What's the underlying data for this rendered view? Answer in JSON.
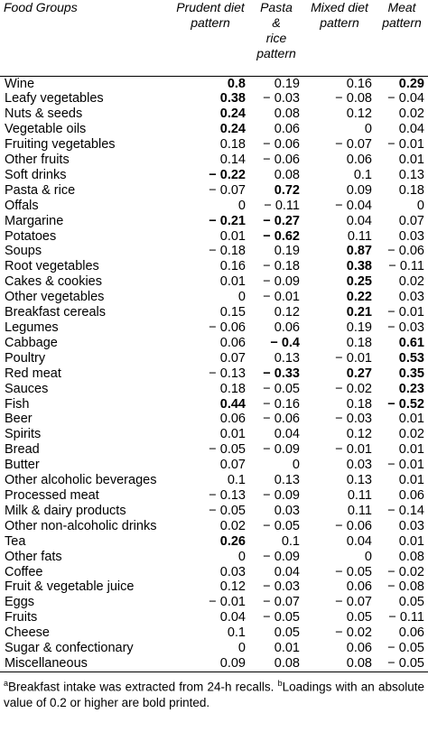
{
  "headers": [
    "Food Groups",
    "Prudent diet pattern",
    "Pasta & rice pattern",
    "Mixed diet pattern",
    "Meat pattern"
  ],
  "header_lines": [
    [
      "Food Groups"
    ],
    [
      "Prudent diet",
      "pattern"
    ],
    [
      "Pasta",
      "&",
      "rice",
      "pattern"
    ],
    [
      "Mixed diet",
      "pattern"
    ],
    [
      "Meat",
      "pattern"
    ]
  ],
  "rows": [
    {
      "name": "Wine",
      "v": [
        "0.8",
        "0.19",
        "0.16",
        "0.29"
      ],
      "b": [
        true,
        false,
        false,
        true
      ]
    },
    {
      "name": "Leafy vegetables",
      "v": [
        "0.38",
        "− 0.03",
        "− 0.08",
        "− 0.04"
      ],
      "b": [
        true,
        false,
        false,
        false
      ]
    },
    {
      "name": "Nuts & seeds",
      "v": [
        "0.24",
        "0.08",
        "0.12",
        "0.02"
      ],
      "b": [
        true,
        false,
        false,
        false
      ]
    },
    {
      "name": "Vegetable oils",
      "v": [
        "0.24",
        "0.06",
        "0",
        "0.04"
      ],
      "b": [
        true,
        false,
        false,
        false
      ]
    },
    {
      "name": "Fruiting vegetables",
      "v": [
        "0.18",
        "− 0.06",
        "− 0.07",
        "− 0.01"
      ],
      "b": [
        false,
        false,
        false,
        false
      ]
    },
    {
      "name": "Other fruits",
      "v": [
        "0.14",
        "− 0.06",
        "0.06",
        "0.01"
      ],
      "b": [
        false,
        false,
        false,
        false
      ]
    },
    {
      "name": "Soft drinks",
      "v": [
        "− 0.22",
        "0.08",
        "0.1",
        "0.13"
      ],
      "b": [
        true,
        false,
        false,
        false
      ]
    },
    {
      "name": "Pasta & rice",
      "v": [
        "− 0.07",
        "0.72",
        "0.09",
        "0.18"
      ],
      "b": [
        false,
        true,
        false,
        false
      ]
    },
    {
      "name": "Offals",
      "v": [
        "0",
        "− 0.11",
        "− 0.04",
        "0"
      ],
      "b": [
        false,
        false,
        false,
        false
      ]
    },
    {
      "name": "Margarine",
      "v": [
        "− 0.21",
        "− 0.27",
        "0.04",
        "0.07"
      ],
      "b": [
        true,
        true,
        false,
        false
      ]
    },
    {
      "name": "Potatoes",
      "v": [
        "0.01",
        "− 0.62",
        "0.11",
        "0.03"
      ],
      "b": [
        false,
        true,
        false,
        false
      ]
    },
    {
      "name": "Soups",
      "v": [
        "− 0.18",
        "0.19",
        "0.87",
        "− 0.06"
      ],
      "b": [
        false,
        false,
        true,
        false
      ]
    },
    {
      "name": "Root vegetables",
      "v": [
        "0.16",
        "− 0.18",
        "0.38",
        "− 0.11"
      ],
      "b": [
        false,
        false,
        true,
        false
      ]
    },
    {
      "name": "Cakes & cookies",
      "v": [
        "0.01",
        "− 0.09",
        "0.25",
        "0.02"
      ],
      "b": [
        false,
        false,
        true,
        false
      ]
    },
    {
      "name": "Other vegetables",
      "v": [
        "0",
        "− 0.01",
        "0.22",
        "0.03"
      ],
      "b": [
        false,
        false,
        true,
        false
      ]
    },
    {
      "name": "Breakfast cereals",
      "v": [
        "0.15",
        "0.12",
        "0.21",
        "− 0.01"
      ],
      "b": [
        false,
        false,
        true,
        false
      ]
    },
    {
      "name": "Legumes",
      "v": [
        "− 0.06",
        "0.06",
        "0.19",
        "− 0.03"
      ],
      "b": [
        false,
        false,
        false,
        false
      ]
    },
    {
      "name": "Cabbage",
      "v": [
        "0.06",
        "− 0.4",
        "0.18",
        "0.61"
      ],
      "b": [
        false,
        true,
        false,
        true
      ]
    },
    {
      "name": "Poultry",
      "v": [
        "0.07",
        "0.13",
        "− 0.01",
        "0.53"
      ],
      "b": [
        false,
        false,
        false,
        true
      ]
    },
    {
      "name": "Red meat",
      "v": [
        "− 0.13",
        "− 0.33",
        "0.27",
        "0.35"
      ],
      "b": [
        false,
        true,
        true,
        true
      ]
    },
    {
      "name": "Sauces",
      "v": [
        "0.18",
        "− 0.05",
        "− 0.02",
        "0.23"
      ],
      "b": [
        false,
        false,
        false,
        true
      ]
    },
    {
      "name": "Fish",
      "v": [
        "0.44",
        "− 0.16",
        "0.18",
        "− 0.52"
      ],
      "b": [
        true,
        false,
        false,
        true
      ]
    },
    {
      "name": "Beer",
      "v": [
        "0.06",
        "− 0.06",
        "− 0.03",
        "0.01"
      ],
      "b": [
        false,
        false,
        false,
        false
      ]
    },
    {
      "name": "Spirits",
      "v": [
        "0.01",
        "0.04",
        "0.12",
        "0.02"
      ],
      "b": [
        false,
        false,
        false,
        false
      ]
    },
    {
      "name": "Bread",
      "v": [
        "− 0.05",
        "− 0.09",
        "− 0.01",
        "0.01"
      ],
      "b": [
        false,
        false,
        false,
        false
      ]
    },
    {
      "name": "Butter",
      "v": [
        "0.07",
        "0",
        "0.03",
        "− 0.01"
      ],
      "b": [
        false,
        false,
        false,
        false
      ]
    },
    {
      "name": "Other alcoholic beverages",
      "v": [
        "0.1",
        "0.13",
        "0.13",
        "0.01"
      ],
      "b": [
        false,
        false,
        false,
        false
      ]
    },
    {
      "name": "Processed meat",
      "v": [
        "− 0.13",
        "− 0.09",
        "0.11",
        "0.06"
      ],
      "b": [
        false,
        false,
        false,
        false
      ]
    },
    {
      "name": "Milk & dairy products",
      "v": [
        "− 0.05",
        "0.03",
        "0.11",
        "− 0.14"
      ],
      "b": [
        false,
        false,
        false,
        false
      ]
    },
    {
      "name": "Other non-alcoholic drinks",
      "v": [
        "0.02",
        "− 0.05",
        "− 0.06",
        "0.03"
      ],
      "b": [
        false,
        false,
        false,
        false
      ]
    },
    {
      "name": "Tea",
      "v": [
        "0.26",
        "0.1",
        "0.04",
        "0.01"
      ],
      "b": [
        true,
        false,
        false,
        false
      ]
    },
    {
      "name": "Other fats",
      "v": [
        "0",
        "− 0.09",
        "0",
        "0.08"
      ],
      "b": [
        false,
        false,
        false,
        false
      ]
    },
    {
      "name": "Coffee",
      "v": [
        "0.03",
        "0.04",
        "− 0.05",
        "− 0.02"
      ],
      "b": [
        false,
        false,
        false,
        false
      ]
    },
    {
      "name": "Fruit & vegetable juice",
      "v": [
        "0.12",
        "− 0.03",
        "0.06",
        "− 0.08"
      ],
      "b": [
        false,
        false,
        false,
        false
      ]
    },
    {
      "name": "Eggs",
      "v": [
        "− 0.01",
        "− 0.07",
        "− 0.07",
        "0.05"
      ],
      "b": [
        false,
        false,
        false,
        false
      ]
    },
    {
      "name": "Fruits",
      "v": [
        "0.04",
        "− 0.05",
        "0.05",
        "− 0.11"
      ],
      "b": [
        false,
        false,
        false,
        false
      ]
    },
    {
      "name": "Cheese",
      "v": [
        "0.1",
        "0.05",
        "− 0.02",
        "0.06"
      ],
      "b": [
        false,
        false,
        false,
        false
      ]
    },
    {
      "name": "Sugar & confectionary",
      "v": [
        "0",
        "0.01",
        "0.06",
        "− 0.05"
      ],
      "b": [
        false,
        false,
        false,
        false
      ]
    },
    {
      "name": "Miscellaneous",
      "v": [
        "0.09",
        "0.08",
        "0.08",
        "− 0.05"
      ],
      "b": [
        false,
        false,
        false,
        false
      ]
    }
  ],
  "footnote": {
    "a_marker": "a",
    "a_text": "Breakfast intake was extracted from 24-h recalls.",
    "b_marker": "b",
    "b_text": "Loadings with an absolute value of 0.2 or higher are bold printed."
  }
}
